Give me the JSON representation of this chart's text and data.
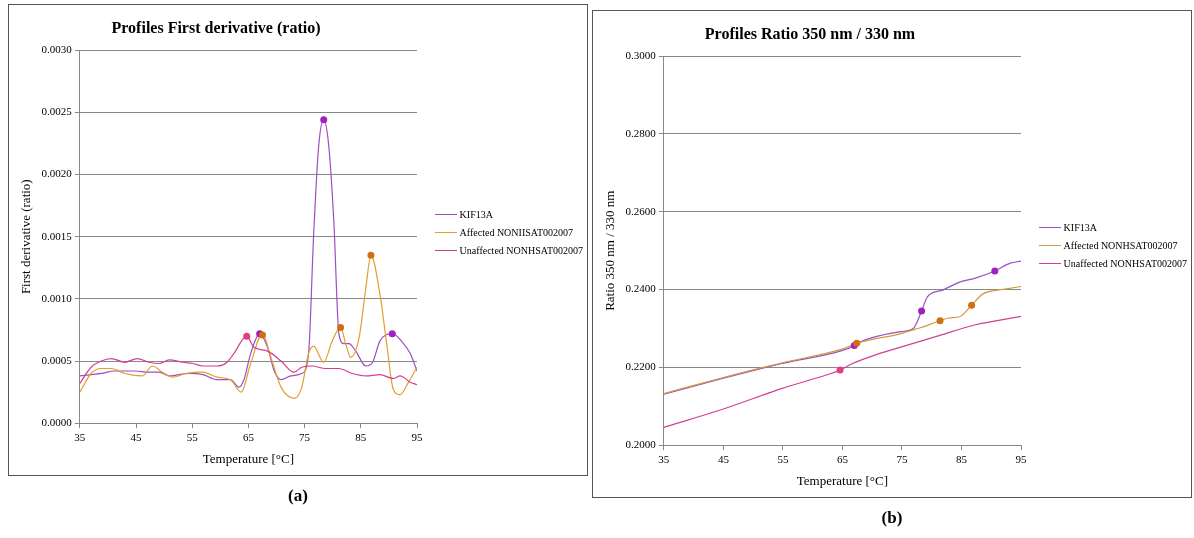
{
  "chart_data": [
    {
      "type": "line",
      "title": "Profiles First derivative (ratio)",
      "xlabel": "Temperature [°C]",
      "ylabel": "First derivative (ratio)",
      "xlim": [
        35,
        95
      ],
      "xticks": [
        35,
        45,
        55,
        65,
        75,
        85,
        95
      ],
      "ylim": [
        0,
        0.003
      ],
      "yticks": [
        {
          "value": 0,
          "label": "0.0000"
        },
        {
          "value": 0.0005,
          "label": "0.0005"
        },
        {
          "value": 0.001,
          "label": "0.0010"
        },
        {
          "value": 0.0015,
          "label": "0.0015"
        },
        {
          "value": 0.002,
          "label": "0.0020"
        },
        {
          "value": 0.0025,
          "label": "0.0025"
        },
        {
          "value": 0.003,
          "label": "0.0030"
        }
      ],
      "grid": "y",
      "legend": "right",
      "marker": "none",
      "annotations": [
        "(a)"
      ],
      "series": [
        {
          "name": "KIF13A",
          "color": "#9b4fc0",
          "x": [
            35,
            38.8,
            41.2,
            44.8,
            47.3,
            49.1,
            50.9,
            54.5,
            56.9,
            59.4,
            61.8,
            63.3,
            64.2,
            65.4,
            67.0,
            68.4,
            69.6,
            70.8,
            72.6,
            74.5,
            75.7,
            76.6,
            77.5,
            78.4,
            79.3,
            80.2,
            81.1,
            82.0,
            82.9,
            84.1,
            85.9,
            87.1,
            88.4,
            90.6,
            92.6,
            93.8,
            95
          ],
          "values": [
            0.00038,
            0.0004,
            0.00042,
            0.00042,
            0.00041,
            0.00041,
            0.00038,
            0.0004,
            0.00039,
            0.00035,
            0.00035,
            0.00029,
            0.00035,
            0.00056,
            0.00072,
            0.00061,
            0.00042,
            0.00035,
            0.00038,
            0.0004,
            0.00056,
            0.00151,
            0.00223,
            0.00244,
            0.00223,
            0.00162,
            0.00072,
            0.00064,
            0.00064,
            0.00058,
            0.00046,
            0.00049,
            0.00066,
            0.00072,
            0.00064,
            0.00056,
            0.00042
          ]
        },
        {
          "name": "Affected NONIISAT002007",
          "color": "#e0a030",
          "x": [
            35,
            37,
            38.8,
            40.6,
            43.0,
            46.1,
            47.9,
            49.7,
            51.5,
            53.9,
            56.9,
            59.4,
            61.8,
            63.7,
            65.4,
            67.5,
            69.0,
            70.8,
            73.2,
            74.5,
            75.7,
            76.6,
            78.4,
            79.9,
            81.4,
            82.3,
            83.2,
            84.7,
            85.9,
            86.8,
            88.4,
            89.6,
            90.8,
            92.0,
            93.5,
            95
          ],
          "values": [
            0.00025,
            0.0004,
            0.00044,
            0.00044,
            0.0004,
            0.00038,
            0.00046,
            0.00041,
            0.00037,
            0.0004,
            0.00041,
            0.00037,
            0.00035,
            0.00025,
            0.00048,
            0.00072,
            0.00053,
            0.00029,
            0.0002,
            0.00029,
            0.00056,
            0.00062,
            0.00049,
            0.00066,
            0.00077,
            0.00064,
            0.00053,
            0.00069,
            0.00109,
            0.00135,
            0.00104,
            0.00064,
            0.00027,
            0.00023,
            0.00033,
            0.00045
          ]
        },
        {
          "name": "Unaffected NONHSAT002007",
          "color": "#d04090",
          "x": [
            35,
            37,
            38.8,
            40.6,
            43.0,
            45.2,
            47.3,
            49.1,
            50.9,
            53.3,
            55.1,
            56.9,
            59.4,
            61.2,
            62.4,
            64.7,
            66.0,
            68.4,
            70.8,
            73.1,
            74.5,
            76.3,
            78.7,
            81.1,
            83.5,
            85.9,
            88.4,
            90.8,
            92.0,
            93.8,
            95
          ],
          "values": [
            0.00032,
            0.00045,
            0.0005,
            0.00052,
            0.00049,
            0.00052,
            0.00049,
            0.00048,
            0.00051,
            0.00049,
            0.00048,
            0.00046,
            0.00046,
            0.00049,
            0.00056,
            0.0007,
            0.00061,
            0.00058,
            0.0005,
            0.00041,
            0.00045,
            0.00046,
            0.00044,
            0.00044,
            0.0004,
            0.00038,
            0.00039,
            0.00036,
            0.00038,
            0.00033,
            0.00031
          ]
        },
        {
          "type": "scatter",
          "marker": "circle",
          "color": "#a020c0",
          "x": [
            67.0,
            78.4,
            90.6
          ],
          "values": [
            0.00072,
            0.00244,
            0.00072
          ]
        },
        {
          "type": "scatter",
          "marker": "circle",
          "color": "#d07010",
          "x": [
            67.5,
            81.4,
            86.8
          ],
          "values": [
            0.00071,
            0.00077,
            0.00135
          ]
        },
        {
          "type": "scatter",
          "marker": "circle",
          "color": "#e04080",
          "x": [
            64.7
          ],
          "values": [
            0.0007
          ]
        }
      ]
    },
    {
      "type": "line",
      "title": "Profiles Ratio 350 nm / 330 nm",
      "xlabel": "Temperature [°C]",
      "ylabel": "Ratio 350 nm / 330 nm",
      "xlim": [
        35,
        95
      ],
      "xticks": [
        35,
        45,
        55,
        65,
        75,
        85,
        95
      ],
      "ylim": [
        0.2,
        0.3
      ],
      "yticks": [
        {
          "value": 0.2,
          "label": "0.2000"
        },
        {
          "value": 0.22,
          "label": "0.2200"
        },
        {
          "value": 0.24,
          "label": "0.2400"
        },
        {
          "value": 0.26,
          "label": "0.2600"
        },
        {
          "value": 0.28,
          "label": "0.2800"
        },
        {
          "value": 0.3,
          "label": "0.3000"
        }
      ],
      "grid": "y",
      "legend": "right",
      "marker": "none",
      "annotations": [
        "(b)"
      ],
      "series": [
        {
          "name": "KIF13A",
          "color": "#9b4fc0",
          "x": [
            35,
            45,
            54.9,
            64.9,
            67.0,
            67.9,
            74.8,
            76.9,
            78.3,
            79.3,
            81.7,
            84.8,
            87.2,
            90.6,
            93.2,
            95
          ],
          "values": [
            0.2131,
            0.2172,
            0.221,
            0.2243,
            0.2256,
            0.2265,
            0.2292,
            0.23,
            0.2345,
            0.2382,
            0.2398,
            0.242,
            0.2429,
            0.2448,
            0.2468,
            0.2473
          ]
        },
        {
          "name": "Affected NONHSAT002007",
          "color": "#d09a40",
          "x": [
            35,
            45,
            54.9,
            64.9,
            67.4,
            74.8,
            76.3,
            78.1,
            81.4,
            82.9,
            84.8,
            86.7,
            88.6,
            90.8,
            92.6,
            95
          ],
          "values": [
            0.2133,
            0.2174,
            0.2212,
            0.2247,
            0.2262,
            0.2287,
            0.2294,
            0.2302,
            0.232,
            0.2327,
            0.2331,
            0.236,
            0.2389,
            0.2398,
            0.2402,
            0.2408
          ]
        },
        {
          "name": "Unaffected NONHSAT002007",
          "color": "#d04090",
          "x": [
            35,
            45,
            54.9,
            62.4,
            64.6,
            66.7,
            70.9,
            74.8,
            81.1,
            87.2,
            95
          ],
          "values": [
            0.2046,
            0.2093,
            0.2146,
            0.2181,
            0.2193,
            0.221,
            0.2234,
            0.2252,
            0.2281,
            0.2309,
            0.2331
          ]
        },
        {
          "type": "scatter",
          "marker": "circle",
          "color": "#a020c0",
          "x": [
            67.0,
            78.3,
            90.6
          ],
          "values": [
            0.2256,
            0.2345,
            0.2448
          ]
        },
        {
          "type": "scatter",
          "marker": "circle",
          "color": "#d07010",
          "x": [
            67.4,
            81.4,
            86.7
          ],
          "values": [
            0.2262,
            0.232,
            0.236
          ]
        },
        {
          "type": "scatter",
          "marker": "circle",
          "color": "#e04080",
          "x": [
            64.6
          ],
          "values": [
            0.2193
          ]
        }
      ]
    }
  ]
}
